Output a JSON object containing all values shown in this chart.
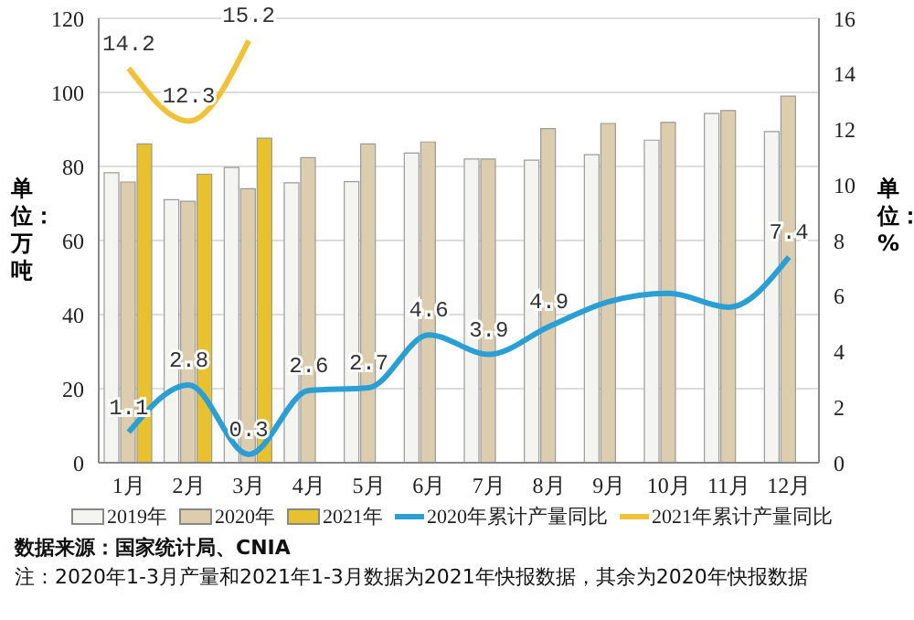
{
  "chart_data": {
    "type": "bar",
    "ylabel": "单位：万吨",
    "y2label": "单位：%",
    "categories": [
      "1月",
      "2月",
      "3月",
      "4月",
      "5月",
      "6月",
      "7月",
      "8月",
      "9月",
      "10月",
      "11月",
      "12月"
    ],
    "series": [
      {
        "name": "2019年",
        "color": "#f4f4f0",
        "values": [
          78.3,
          71,
          79.7,
          75.6,
          75.9,
          83.6,
          82,
          81.7,
          83.2,
          87.1,
          94.3,
          89.4
        ]
      },
      {
        "name": "2020年",
        "color": "#dccdae",
        "values": [
          75.8,
          70.6,
          74,
          82.4,
          86.1,
          86.6,
          82,
          90.2,
          91.6,
          91.9,
          95.1,
          99
        ]
      },
      {
        "name": "2021年",
        "color": "#e8c22e",
        "values": [
          86.1,
          77.9,
          87.6,
          null,
          null,
          null,
          null,
          null,
          null,
          null,
          null,
          null
        ]
      },
      {
        "name": "2020年累计产量同比",
        "type": "line",
        "axis": "y2",
        "color": "#2b9fd3",
        "values": [
          1.1,
          2.8,
          0.3,
          2.6,
          2.7,
          4.6,
          3.9,
          4.9,
          5.8,
          6.1,
          5.6,
          7.4
        ],
        "value_labels": [
          "1.1",
          "2.8",
          "0.3",
          "2.6",
          "2.7",
          "4.6",
          "3.9",
          "4.9",
          null,
          null,
          null,
          "7.4"
        ]
      },
      {
        "name": "2021年累计产量同比",
        "type": "line",
        "axis": "y2",
        "color": "#f0c23a",
        "values": [
          14.2,
          12.3,
          15.2,
          null,
          null,
          null,
          null,
          null,
          null,
          null,
          null,
          null
        ],
        "value_labels": [
          "14.2",
          "12.3",
          "15.2",
          null,
          null,
          null,
          null,
          null,
          null,
          null,
          null,
          null
        ]
      }
    ],
    "ylim": [
      0,
      120
    ],
    "yticks": [
      0,
      20,
      40,
      60,
      80,
      100,
      120
    ],
    "y2lim": [
      0,
      16
    ],
    "y2ticks": [
      0,
      2,
      4,
      6,
      8,
      10,
      12,
      14,
      16
    ],
    "grid": "y",
    "legend": "bottom",
    "marker": "none",
    "annotations": [
      "数据来源：国家统计局、CNIA",
      "注：2020年1-3月产量和2021年1-3月数据为2021年快报数据，其余为2020年快报数据"
    ]
  }
}
